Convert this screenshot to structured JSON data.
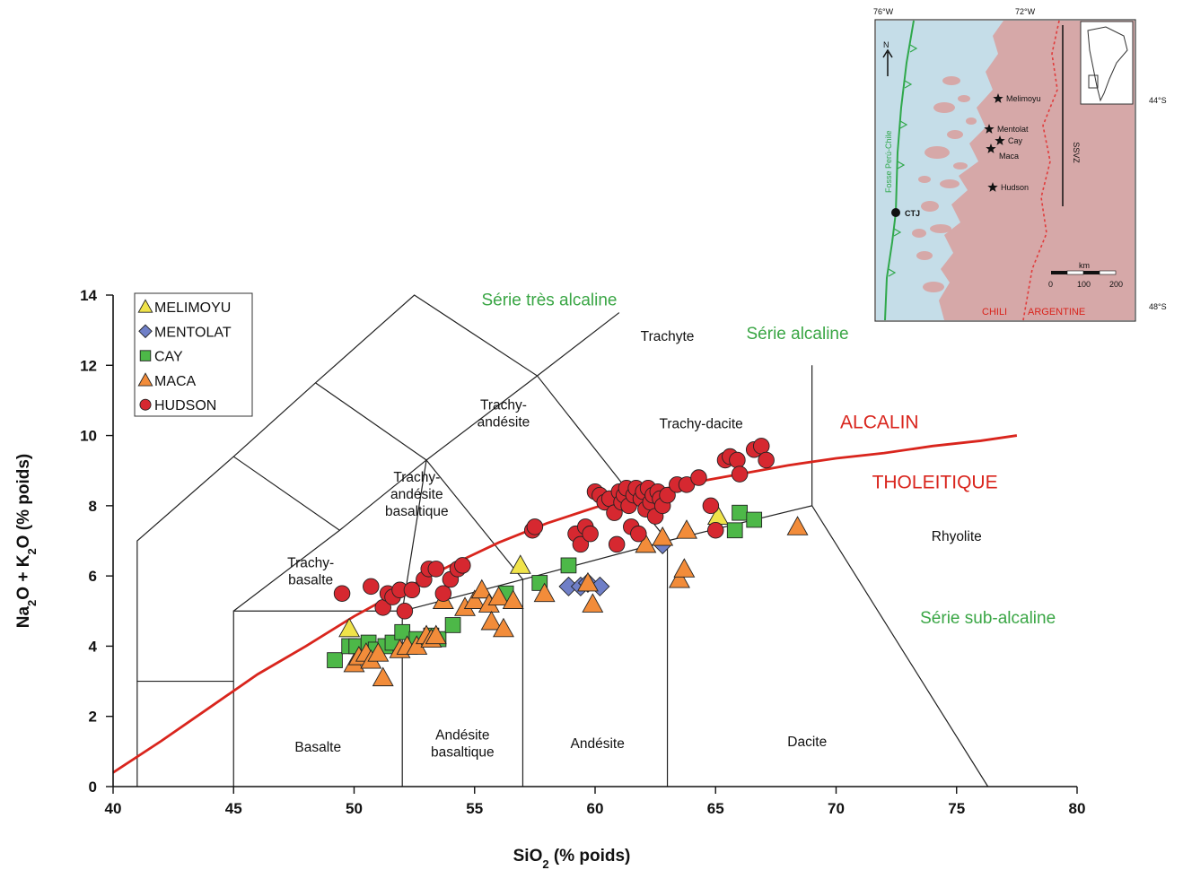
{
  "chart_data": {
    "type": "scatter",
    "xlabel": "SiO",
    "xlabel_sub": "2",
    "xlabel_tail": " (% poids)",
    "ylabel_parts": [
      "Na",
      "2",
      "O + K",
      "2",
      "O (% poids)"
    ],
    "xlim": [
      40,
      80
    ],
    "ylim": [
      0,
      14
    ],
    "xticks": [
      "40",
      "45",
      "50",
      "55",
      "60",
      "65",
      "70",
      "75",
      "80"
    ],
    "yticks": [
      "0",
      "2",
      "4",
      "6",
      "8",
      "10",
      "12",
      "14"
    ],
    "grid": false,
    "legend_position": "top-left",
    "fields": [
      {
        "lines": [
          "Basalte"
        ],
        "x": 48.5,
        "y": 1.0
      },
      {
        "lines": [
          "Andésite",
          "basaltique"
        ],
        "x": 54.5,
        "y": 1.1
      },
      {
        "lines": [
          "Andésite"
        ],
        "x": 60.1,
        "y": 1.1
      },
      {
        "lines": [
          "Dacite"
        ],
        "x": 68.8,
        "y": 1.15
      },
      {
        "lines": [
          "Rhyolite"
        ],
        "x": 75.0,
        "y": 7.0
      },
      {
        "lines": [
          "Trachy-",
          "basalte"
        ],
        "x": 48.2,
        "y": 6.0
      },
      {
        "lines": [
          "Trachy-",
          "andésite",
          "basaltique"
        ],
        "x": 52.6,
        "y": 8.2
      },
      {
        "lines": [
          "Trachy-",
          "andésite"
        ],
        "x": 56.2,
        "y": 10.5
      },
      {
        "lines": [
          "Trachy-dacite"
        ],
        "x": 64.4,
        "y": 10.2
      },
      {
        "lines": [
          "Trachyte"
        ],
        "x": 63.0,
        "y": 12.7
      }
    ],
    "series_labels": [
      {
        "text": "Série très alcaline",
        "x": 58.1,
        "y": 13.7
      },
      {
        "text": "Série alcaline",
        "x": 68.4,
        "y": 12.75
      },
      {
        "text": "Série sub-alcaline",
        "x": 76.3,
        "y": 4.65
      }
    ],
    "divider_labels": [
      {
        "text": "ALCALIN",
        "x": 71.8,
        "y": 10.2
      },
      {
        "text": "THOLEITIQUE",
        "x": 74.1,
        "y": 8.5
      }
    ],
    "divider_line": [
      [
        40,
        0.4
      ],
      [
        42,
        1.3
      ],
      [
        44,
        2.25
      ],
      [
        46,
        3.2
      ],
      [
        48,
        4.0
      ],
      [
        50,
        4.85
      ],
      [
        52,
        5.6
      ],
      [
        54,
        6.3
      ],
      [
        56,
        6.95
      ],
      [
        58,
        7.5
      ],
      [
        60,
        7.95
      ],
      [
        62,
        8.35
      ],
      [
        64,
        8.65
      ],
      [
        66,
        8.9
      ],
      [
        68,
        9.15
      ],
      [
        70,
        9.35
      ],
      [
        72,
        9.5
      ],
      [
        74,
        9.7
      ],
      [
        76,
        9.85
      ],
      [
        77.5,
        10.0
      ]
    ],
    "tas_lines": [
      [
        [
          41,
          0
        ],
        [
          41,
          3
        ],
        [
          45,
          3
        ]
      ],
      [
        [
          41,
          3
        ],
        [
          41,
          7
        ],
        [
          45,
          9.4
        ],
        [
          48.4,
          11.5
        ],
        [
          52.5,
          14
        ],
        [
          57.6,
          11.7
        ],
        [
          63,
          7
        ],
        [
          63,
          0
        ]
      ],
      [
        [
          45,
          0
        ],
        [
          45,
          5
        ],
        [
          52,
          5
        ],
        [
          52,
          0
        ]
      ],
      [
        [
          45,
          5
        ],
        [
          49.4,
          7.3
        ],
        [
          45,
          9.4
        ]
      ],
      [
        [
          52,
          5
        ],
        [
          57,
          5.9
        ],
        [
          57,
          0
        ]
      ],
      [
        [
          57,
          5.9
        ],
        [
          63,
          7
        ],
        [
          69,
          8
        ],
        [
          69,
          12
        ]
      ],
      [
        [
          49.4,
          7.3
        ],
        [
          53,
          9.3
        ],
        [
          48.4,
          11.5
        ]
      ],
      [
        [
          52,
          5
        ],
        [
          53,
          9.3
        ],
        [
          57.6,
          11.7
        ]
      ],
      [
        [
          57.6,
          11.7
        ],
        [
          61,
          13.5
        ]
      ],
      [
        [
          69,
          8
        ],
        [
          76.3,
          0
        ]
      ],
      [
        [
          53,
          9.3
        ],
        [
          57,
          5.9
        ]
      ]
    ],
    "series": [
      {
        "name": "MELIMOYU",
        "marker": "triangle",
        "color": "#f0e34a",
        "points": [
          [
            49.8,
            4.5
          ],
          [
            56.9,
            6.3
          ],
          [
            65.1,
            7.7
          ]
        ]
      },
      {
        "name": "MENTOLAT",
        "marker": "diamond",
        "color": "#6f7fc7",
        "points": [
          [
            58.9,
            5.7
          ],
          [
            59.4,
            5.7
          ],
          [
            59.7,
            5.8
          ],
          [
            60.2,
            5.7
          ],
          [
            62.8,
            6.9
          ]
        ]
      },
      {
        "name": "CAY",
        "marker": "square",
        "color": "#4db848",
        "points": [
          [
            49.2,
            3.6
          ],
          [
            49.8,
            4.0
          ],
          [
            50.1,
            4.0
          ],
          [
            50.6,
            4.1
          ],
          [
            50.9,
            3.9
          ],
          [
            51.3,
            4.0
          ],
          [
            51.6,
            4.1
          ],
          [
            52.0,
            4.4
          ],
          [
            52.6,
            4.2
          ],
          [
            53.2,
            4.3
          ],
          [
            53.5,
            4.2
          ],
          [
            54.1,
            4.6
          ],
          [
            56.3,
            5.5
          ],
          [
            57.7,
            5.8
          ],
          [
            58.9,
            6.3
          ],
          [
            65.8,
            7.3
          ],
          [
            66.0,
            7.8
          ],
          [
            66.6,
            7.6
          ]
        ]
      },
      {
        "name": "MACA",
        "marker": "triangle",
        "color": "#f28c3a",
        "points": [
          [
            50.0,
            3.5
          ],
          [
            50.2,
            3.7
          ],
          [
            50.5,
            3.8
          ],
          [
            50.7,
            3.6
          ],
          [
            51.0,
            3.8
          ],
          [
            51.2,
            3.1
          ],
          [
            51.9,
            3.9
          ],
          [
            52.2,
            4.0
          ],
          [
            52.6,
            4.0
          ],
          [
            53.0,
            4.3
          ],
          [
            53.2,
            4.2
          ],
          [
            53.4,
            4.3
          ],
          [
            53.7,
            5.3
          ],
          [
            54.6,
            5.1
          ],
          [
            55.0,
            5.3
          ],
          [
            55.3,
            5.6
          ],
          [
            55.6,
            5.2
          ],
          [
            55.7,
            4.7
          ],
          [
            56.0,
            5.4
          ],
          [
            56.2,
            4.5
          ],
          [
            56.6,
            5.3
          ],
          [
            57.9,
            5.5
          ],
          [
            59.7,
            5.8
          ],
          [
            59.9,
            5.2
          ],
          [
            62.1,
            6.9
          ],
          [
            62.8,
            7.1
          ],
          [
            63.5,
            5.9
          ],
          [
            63.7,
            6.2
          ],
          [
            63.8,
            7.3
          ],
          [
            68.4,
            7.4
          ]
        ]
      },
      {
        "name": "HUDSON",
        "marker": "circle",
        "color": "#d62830",
        "points": [
          [
            49.5,
            5.5
          ],
          [
            50.7,
            5.7
          ],
          [
            51.2,
            5.1
          ],
          [
            51.4,
            5.5
          ],
          [
            51.6,
            5.4
          ],
          [
            51.9,
            5.6
          ],
          [
            52.1,
            5.0
          ],
          [
            52.4,
            5.6
          ],
          [
            52.9,
            5.9
          ],
          [
            53.1,
            6.2
          ],
          [
            53.4,
            6.2
          ],
          [
            53.7,
            5.5
          ],
          [
            54.0,
            5.9
          ],
          [
            54.3,
            6.2
          ],
          [
            54.5,
            6.3
          ],
          [
            57.4,
            7.3
          ],
          [
            57.5,
            7.4
          ],
          [
            59.2,
            7.2
          ],
          [
            59.4,
            6.9
          ],
          [
            59.6,
            7.4
          ],
          [
            59.8,
            7.2
          ],
          [
            60.0,
            8.4
          ],
          [
            60.2,
            8.3
          ],
          [
            60.4,
            8.1
          ],
          [
            60.6,
            8.2
          ],
          [
            60.8,
            7.8
          ],
          [
            60.9,
            6.9
          ],
          [
            61.0,
            8.4
          ],
          [
            61.1,
            8.1
          ],
          [
            61.2,
            8.3
          ],
          [
            61.3,
            8.5
          ],
          [
            61.4,
            8.0
          ],
          [
            61.5,
            7.4
          ],
          [
            61.6,
            8.3
          ],
          [
            61.7,
            8.5
          ],
          [
            61.8,
            7.2
          ],
          [
            61.9,
            8.2
          ],
          [
            62.0,
            8.4
          ],
          [
            62.1,
            7.9
          ],
          [
            62.2,
            8.5
          ],
          [
            62.3,
            8.1
          ],
          [
            62.4,
            8.3
          ],
          [
            62.5,
            7.7
          ],
          [
            62.6,
            8.4
          ],
          [
            62.7,
            8.2
          ],
          [
            62.8,
            8.0
          ],
          [
            63.0,
            8.3
          ],
          [
            63.4,
            8.6
          ],
          [
            63.8,
            8.6
          ],
          [
            64.3,
            8.8
          ],
          [
            64.8,
            8.0
          ],
          [
            65.0,
            7.3
          ],
          [
            65.4,
            9.3
          ],
          [
            65.6,
            9.4
          ],
          [
            65.9,
            9.3
          ],
          [
            66.0,
            8.9
          ],
          [
            66.6,
            9.6
          ],
          [
            66.9,
            9.7
          ],
          [
            67.1,
            9.3
          ]
        ]
      }
    ],
    "legend": [
      "MELIMOYU",
      "MENTOLAT",
      "CAY",
      "MACA",
      "HUDSON"
    ]
  },
  "inset_map": {
    "longitudes": [
      "76°W",
      "72°W"
    ],
    "latitudes": [
      "44°S",
      "48°S"
    ],
    "north": "N",
    "trench_label": "Fosse Perú-Chile",
    "volcanoes": [
      "Melimoyu",
      "Mentolat",
      "Cay",
      "Maca",
      "Hudson"
    ],
    "junction": "CTJ",
    "zone": "SSVZ",
    "scale_unit": "km",
    "scale_ticks": [
      "0",
      "100",
      "200"
    ],
    "countries": [
      "CHILI",
      "ARGENTINE"
    ],
    "colors": {
      "sea": "#c5dde8",
      "land": "#d6a8a8",
      "trench": "#2fa84b",
      "border": "#e03c3c"
    }
  }
}
